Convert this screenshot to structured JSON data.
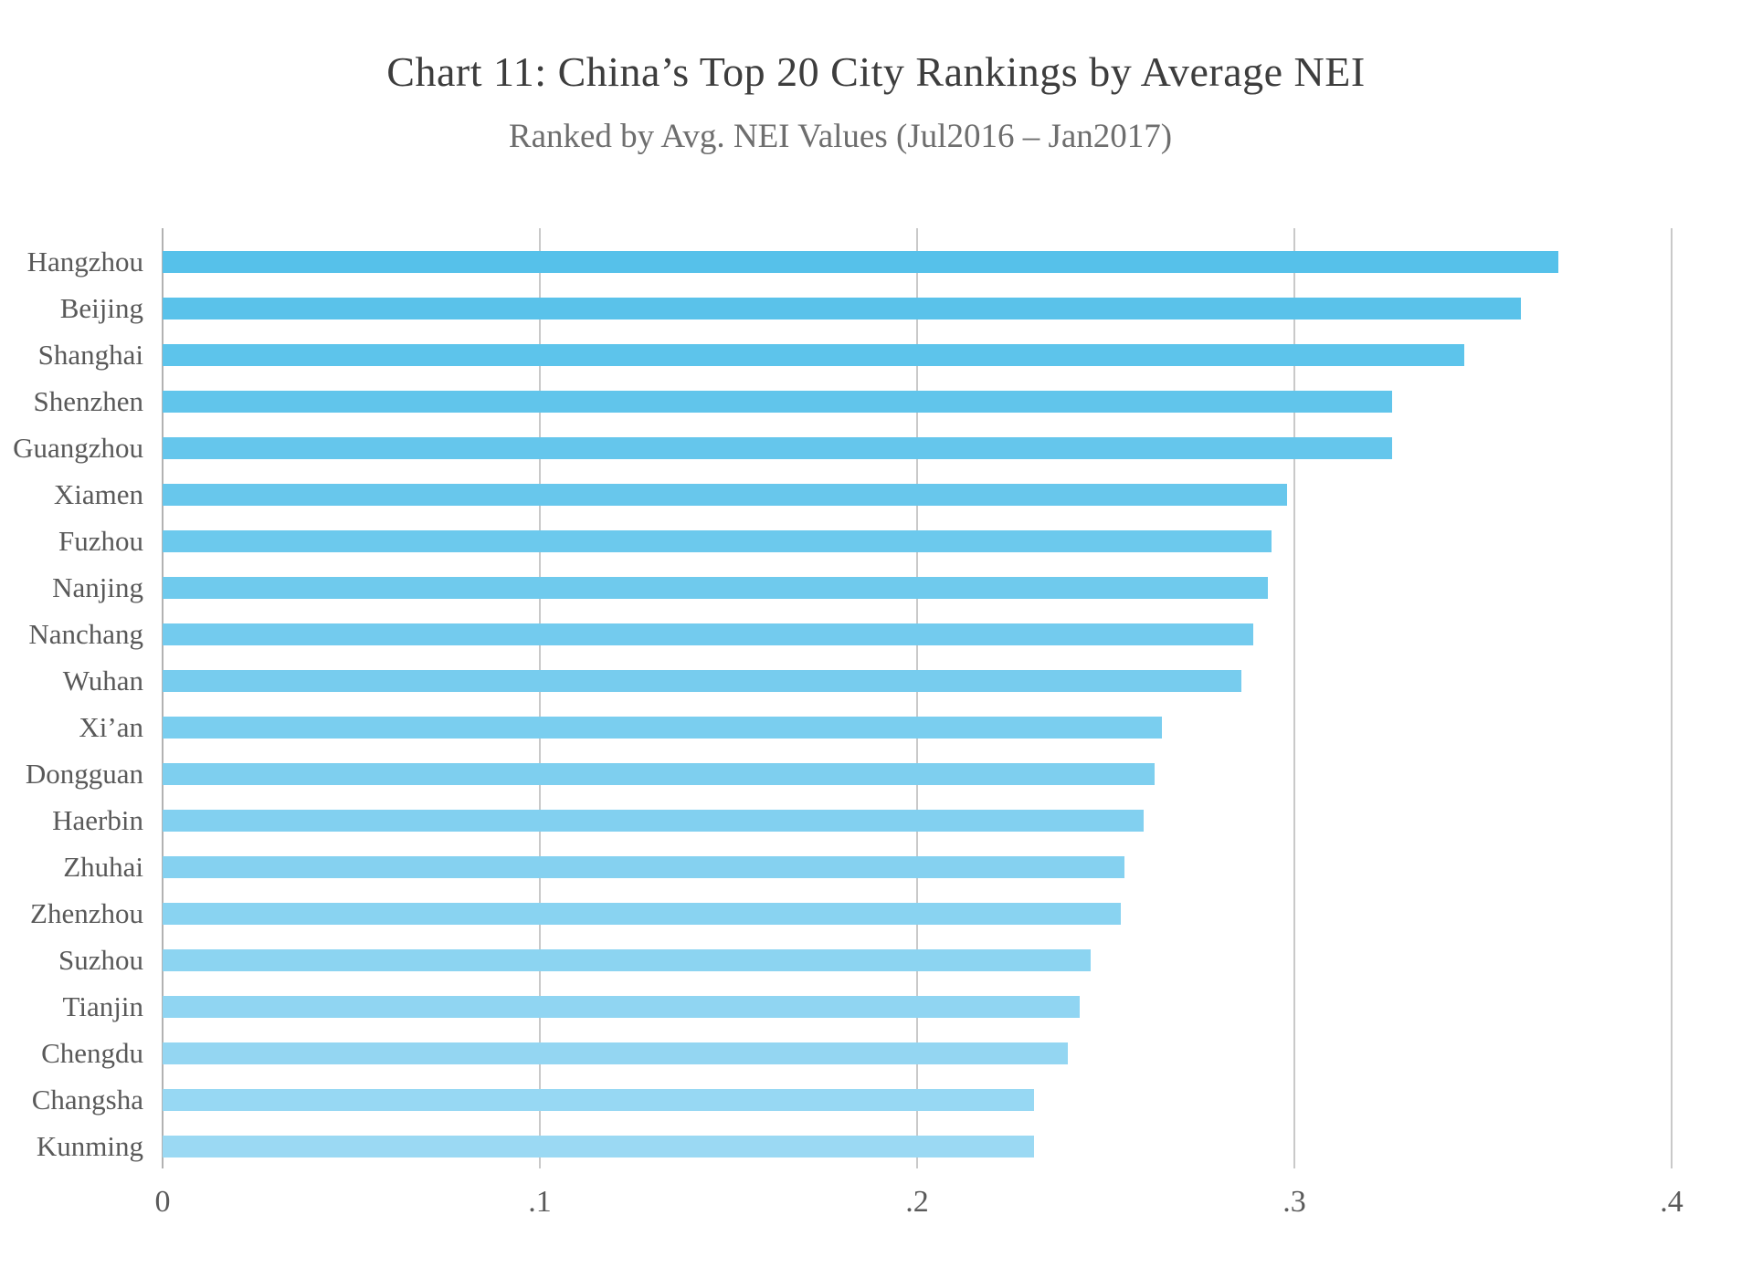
{
  "chart_data": {
    "type": "bar",
    "orientation": "horizontal",
    "title": "Chart 11: China’s Top 20 City Rankings by Average NEI",
    "subtitle": "Ranked by Avg. NEI Values (Jul2016 – Jan2017)",
    "categories": [
      "Hangzhou",
      "Beijing",
      "Shanghai",
      "Shenzhen",
      "Guangzhou",
      "Xiamen",
      "Fuzhou",
      "Nanjing",
      "Nanchang",
      "Wuhan",
      "Xi’an",
      "Dongguan",
      "Haerbin",
      "Zhuhai",
      "Zhenzhou",
      "Suzhou",
      "Tianjin",
      "Chengdu",
      "Changsha",
      "Kunming"
    ],
    "values": [
      0.37,
      0.36,
      0.345,
      0.326,
      0.326,
      0.298,
      0.294,
      0.293,
      0.289,
      0.286,
      0.265,
      0.263,
      0.26,
      0.255,
      0.254,
      0.246,
      0.243,
      0.24,
      0.231,
      0.231
    ],
    "xlabel": "",
    "ylabel": "",
    "xlim": [
      0,
      0.4
    ],
    "x_ticks": [
      {
        "value": 0.0,
        "label": "0"
      },
      {
        "value": 0.1,
        "label": ".1"
      },
      {
        "value": 0.2,
        "label": ".2"
      },
      {
        "value": 0.3,
        "label": ".3"
      },
      {
        "value": 0.4,
        "label": ".4"
      }
    ],
    "grid": "vertical-gridlines-on",
    "legend_position": "none",
    "style": {
      "bar_color_start": "#56C1EA",
      "bar_color_end": "#9BD9F3",
      "gridline_color": "#c9c9c9",
      "axis_line_color": "#b2b2b2",
      "title_color": "#3d3d3d",
      "subtitle_color": "#6e6e6e",
      "label_color": "#595959",
      "background_color": "#ffffff"
    }
  }
}
